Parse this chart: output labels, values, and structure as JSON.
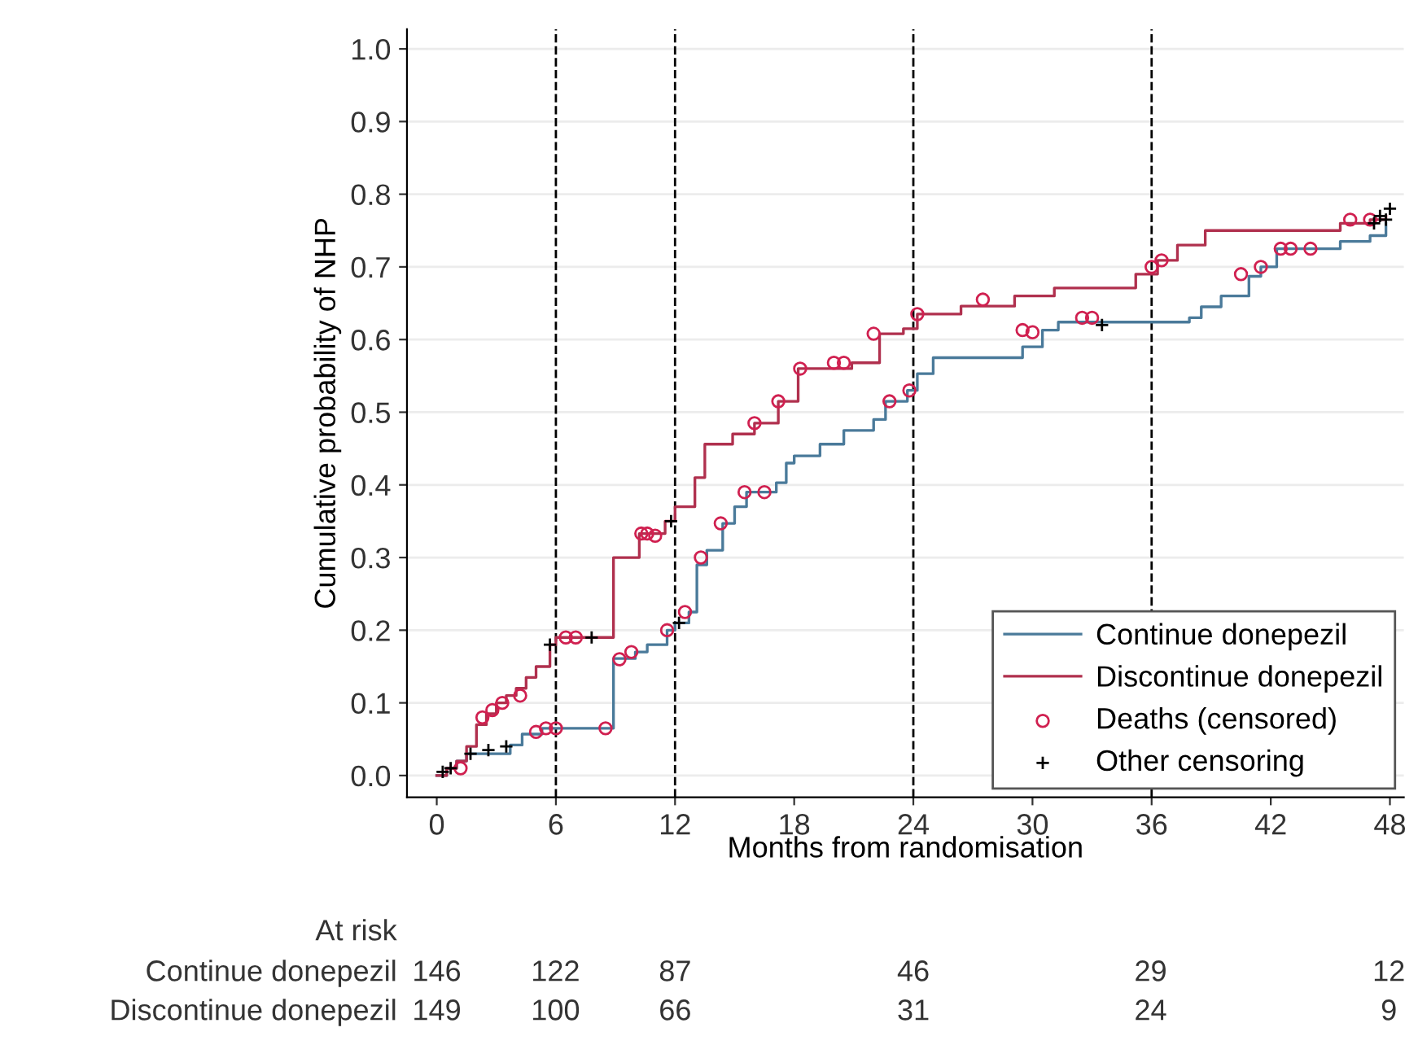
{
  "chart_data": {
    "type": "step",
    "ylabel": "Cumulative probability of NHP",
    "xlabel": "Months from randomisation",
    "xlim": [
      -1.5,
      48.7
    ],
    "ylim": [
      -0.03,
      1.027
    ],
    "xticks": [
      0,
      6,
      12,
      18,
      24,
      30,
      36,
      42,
      48
    ],
    "yticks": [
      {
        "value": 0,
        "label": "0.0"
      },
      {
        "value": 0.1,
        "label": "0.1"
      },
      {
        "value": 0.2,
        "label": "0.2"
      },
      {
        "value": 0.3,
        "label": "0.3"
      },
      {
        "value": 0.4,
        "label": "0.4"
      },
      {
        "value": 0.5,
        "label": "0.5"
      },
      {
        "value": 0.6,
        "label": "0.6"
      },
      {
        "value": 0.7,
        "label": "0.7"
      },
      {
        "value": 0.8,
        "label": "0.8"
      },
      {
        "value": 0.9,
        "label": "0.9"
      },
      {
        "value": 1.0,
        "label": "1.0"
      }
    ],
    "grid": "y",
    "legend": "bottom right",
    "line_style": "solid",
    "series": [
      {
        "name": "Continue donepezil",
        "color": "#4a7a9a",
        "marker": "none",
        "x": [
          0,
          0.5,
          1,
          1.5,
          3.7,
          4.3,
          5.3,
          8.9,
          10,
          10.6,
          11.6,
          12,
          12.7,
          13.1,
          13.6,
          14.4,
          15,
          15.6,
          17.1,
          17.6,
          18,
          19.3,
          20.5,
          22,
          22.6,
          23.7,
          24.2,
          25,
          29.5,
          30.5,
          31.3,
          37.9,
          38.5,
          39.5,
          40.9,
          41.5,
          42.3,
          45.5,
          47,
          47.8
        ],
        "values": [
          0,
          0.01,
          0.02,
          0.03,
          0.042,
          0.057,
          0.065,
          0.161,
          0.17,
          0.18,
          0.2,
          0.21,
          0.225,
          0.29,
          0.31,
          0.347,
          0.37,
          0.39,
          0.403,
          0.43,
          0.44,
          0.456,
          0.475,
          0.49,
          0.515,
          0.53,
          0.553,
          0.575,
          0.59,
          0.613,
          0.624,
          0.63,
          0.645,
          0.66,
          0.687,
          0.7,
          0.725,
          0.735,
          0.743,
          0.76
        ]
      },
      {
        "name": "Discontinue donepezil",
        "color": "#b0304e",
        "marker": "none",
        "x": [
          0,
          0.5,
          1,
          1.5,
          2,
          2.5,
          3,
          3.5,
          4,
          4.5,
          5,
          5.7,
          6,
          8.9,
          10.2,
          11.5,
          12,
          13,
          13.5,
          14.9,
          16,
          17.2,
          18.2,
          20.9,
          22.3,
          23.5,
          24.2,
          26.4,
          29.1,
          31.1,
          35.2,
          36.3,
          37.3,
          38.7,
          45.5,
          47,
          47.8
        ],
        "values": [
          0,
          0.01,
          0.02,
          0.04,
          0.07,
          0.085,
          0.1,
          0.11,
          0.12,
          0.135,
          0.15,
          0.18,
          0.19,
          0.3,
          0.333,
          0.35,
          0.37,
          0.41,
          0.456,
          0.47,
          0.485,
          0.515,
          0.56,
          0.568,
          0.608,
          0.615,
          0.635,
          0.646,
          0.66,
          0.671,
          0.69,
          0.709,
          0.73,
          0.75,
          0.76,
          0.765,
          0.77
        ]
      },
      {
        "name": "Deaths (censored)",
        "type": "scatter",
        "color": "#d02050",
        "marker": "circle",
        "x": [
          1.2,
          2.3,
          2.8,
          3.3,
          4.2,
          5.0,
          5.5,
          6.0,
          6.5,
          7.0,
          8.5,
          9.2,
          9.8,
          10.3,
          10.6,
          11.0,
          11.6,
          12.5,
          13.3,
          14.3,
          15.5,
          16.0,
          16.5,
          17.2,
          18.3,
          20.0,
          20.5,
          22.0,
          22.8,
          23.8,
          24.2,
          27.5,
          29.5,
          30.0,
          32.5,
          33.0,
          36.0,
          36.5,
          40.5,
          41.5,
          42.5,
          43.0,
          44.0,
          46.0,
          47.0
        ],
        "values": [
          0.01,
          0.08,
          0.09,
          0.1,
          0.11,
          0.06,
          0.065,
          0.065,
          0.19,
          0.19,
          0.065,
          0.16,
          0.17,
          0.333,
          0.333,
          0.33,
          0.2,
          0.225,
          0.3,
          0.347,
          0.39,
          0.485,
          0.39,
          0.515,
          0.56,
          0.568,
          0.568,
          0.608,
          0.515,
          0.53,
          0.635,
          0.655,
          0.613,
          0.61,
          0.63,
          0.63,
          0.7,
          0.709,
          0.69,
          0.7,
          0.725,
          0.725,
          0.725,
          0.765,
          0.765
        ]
      },
      {
        "name": "Other censoring",
        "type": "scatter",
        "color": "#000000",
        "marker": "cross",
        "x": [
          0.3,
          0.7,
          1.7,
          2.6,
          3.5,
          5.7,
          7.8,
          11.8,
          12.2,
          33.5,
          47.2,
          47.5,
          47.8,
          48.0
        ],
        "values": [
          0.005,
          0.01,
          0.03,
          0.035,
          0.04,
          0.18,
          0.19,
          0.35,
          0.21,
          0.62,
          0.76,
          0.77,
          0.765,
          0.78
        ]
      }
    ],
    "ref_lines": [
      {
        "axis": "x",
        "value": 6,
        "color": "#000000",
        "line_style": "dashed"
      },
      {
        "axis": "x",
        "value": 12,
        "color": "#000000",
        "line_style": "dashed"
      },
      {
        "axis": "x",
        "value": 24,
        "color": "#000000",
        "line_style": "dashed"
      },
      {
        "axis": "x",
        "value": 36,
        "color": "#000000",
        "line_style": "dashed"
      }
    ],
    "annotations": [
      "At risk",
      "Continue donepezil",
      "146",
      "122",
      "87",
      "46",
      "29",
      "12",
      "Discontinue donepezil",
      "149",
      "100",
      "66",
      "31",
      "24",
      "9"
    ]
  }
}
